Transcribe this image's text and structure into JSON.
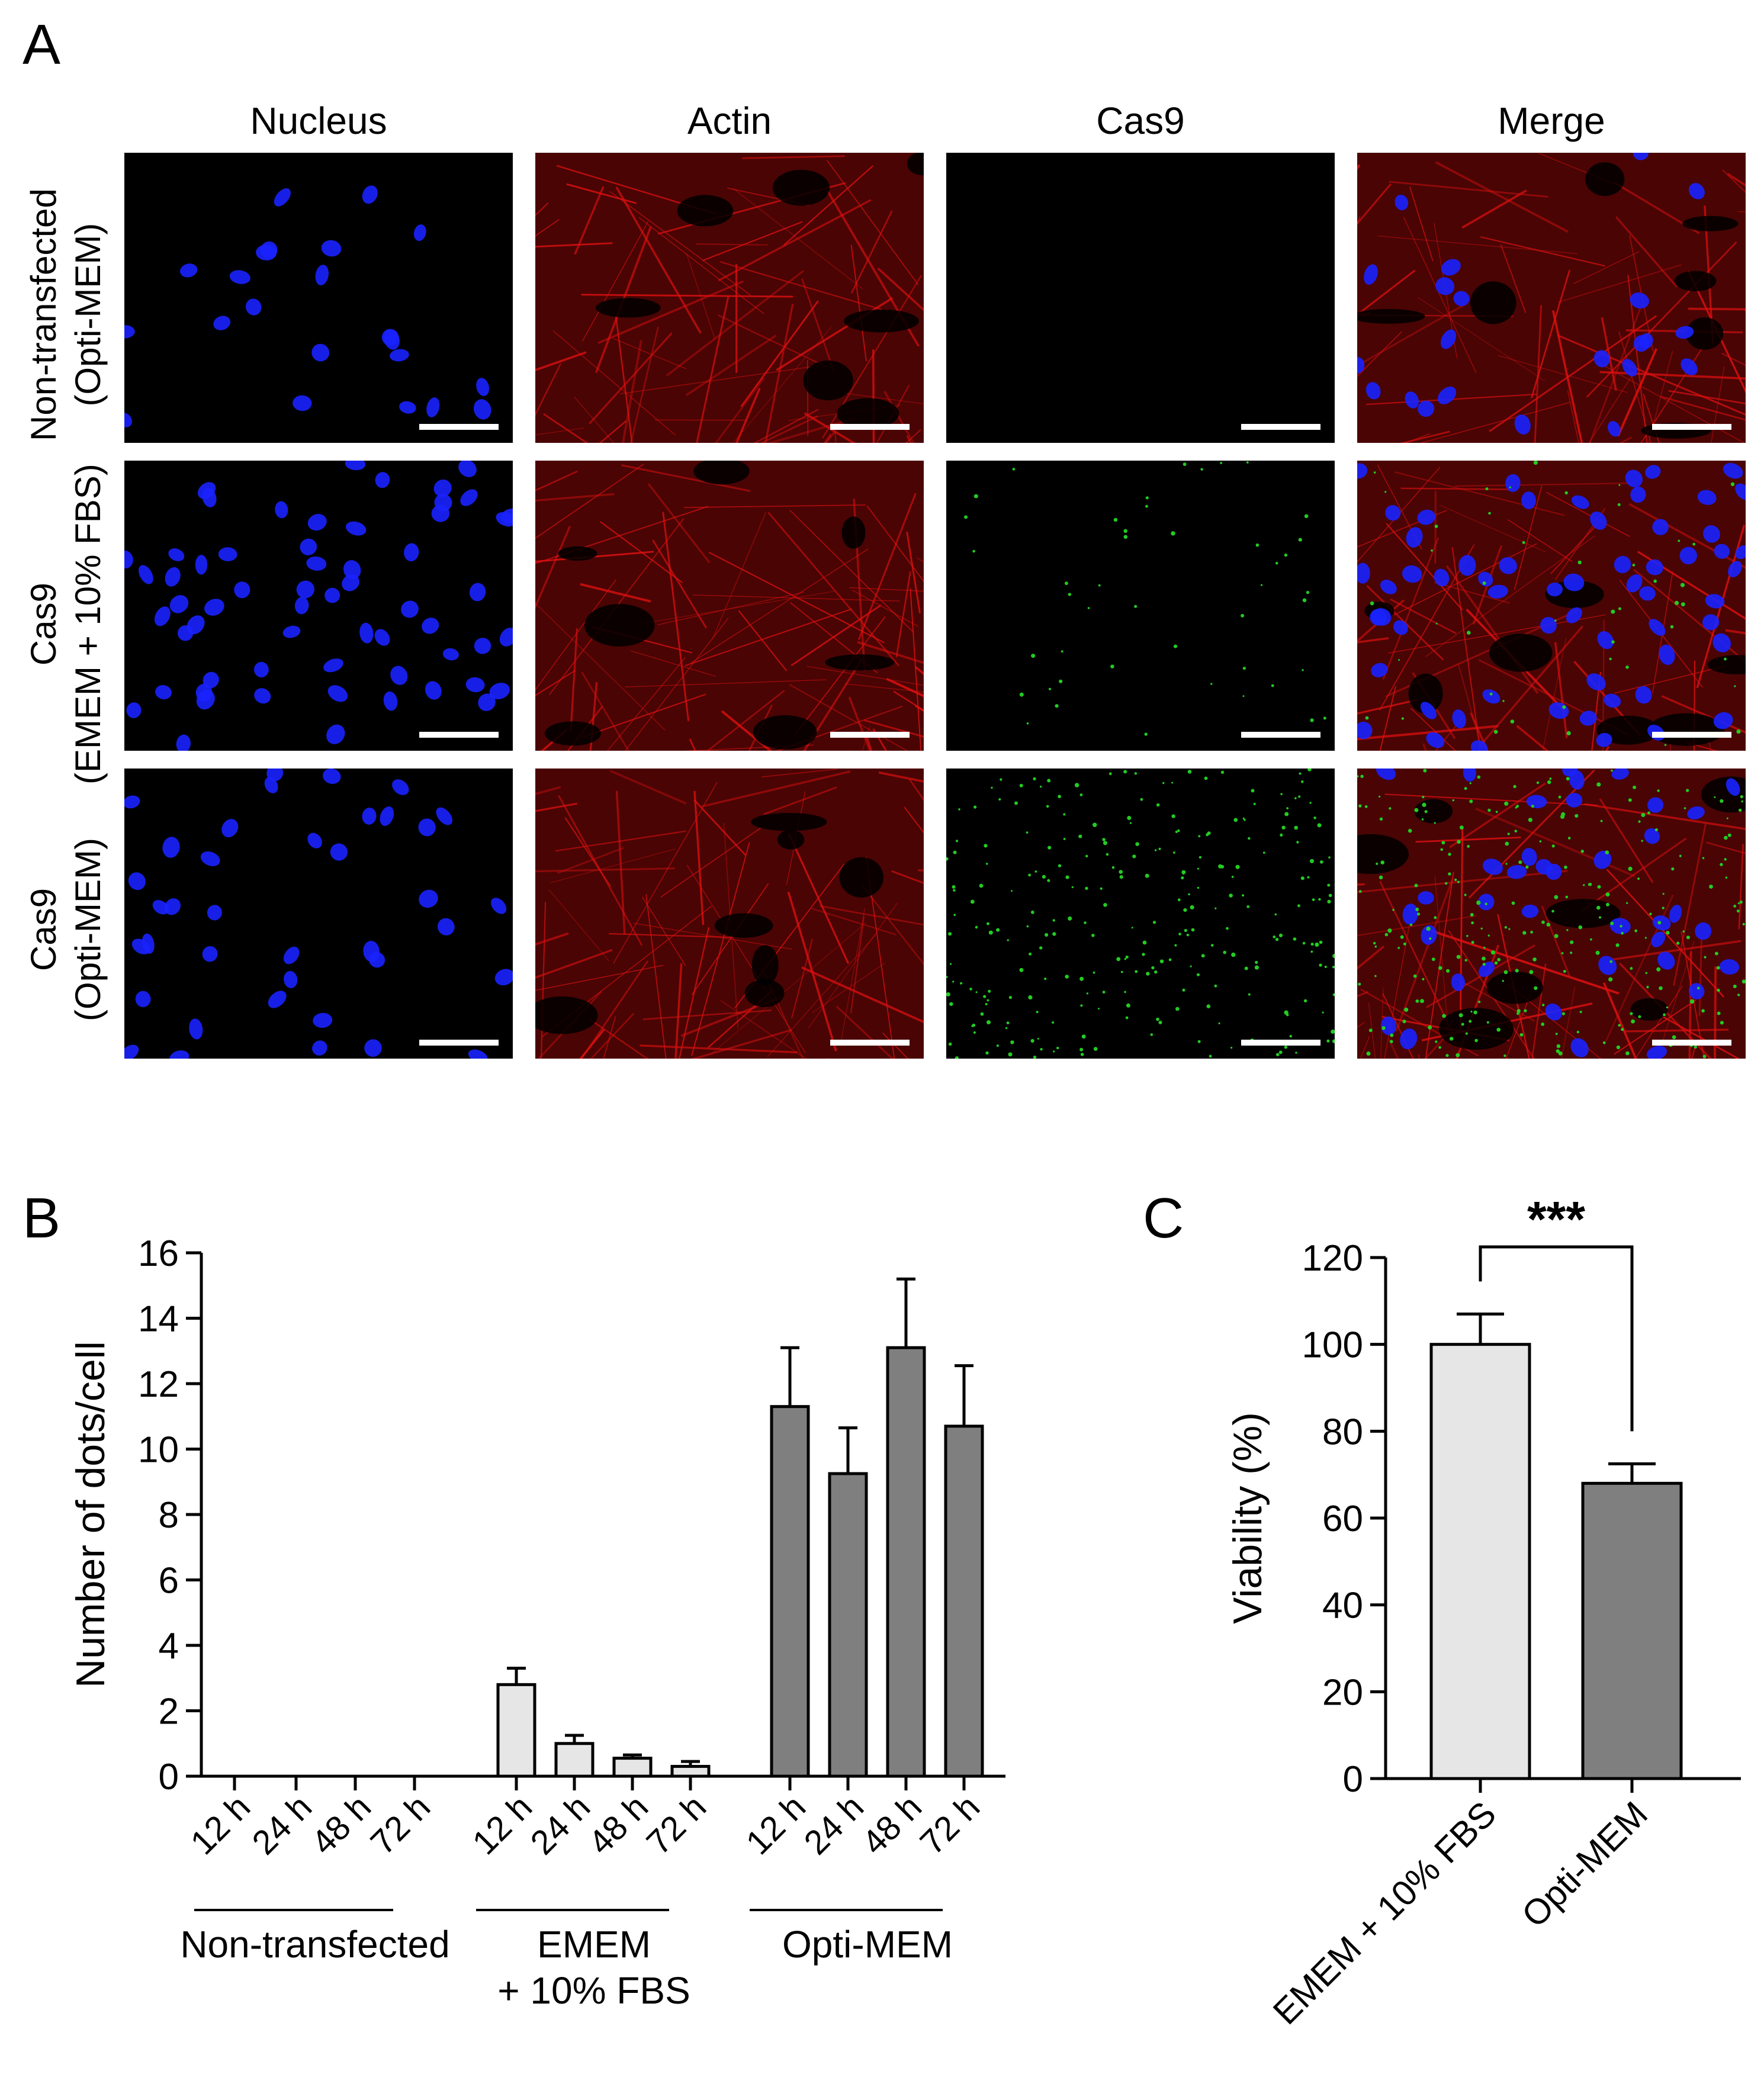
{
  "panel_a": {
    "letter": "A",
    "columns": [
      "Nucleus",
      "Actin",
      "Cas9",
      "Merge"
    ],
    "rows": [
      {
        "line1": "Non-transfected",
        "line2": "(Opti-MEM)",
        "cas9_level": 0
      },
      {
        "line1": "Cas9",
        "line2": "(EMEM + 10% FBS)",
        "cas9_level": 1
      },
      {
        "line1": "Cas9",
        "line2": "(Opti-MEM)",
        "cas9_level": 3
      }
    ],
    "colors": {
      "nucleus": "#1a22ff",
      "actin": "#e01010",
      "cas9": "#22cc22",
      "background": "#000000"
    }
  },
  "panel_b": {
    "letter": "B"
  },
  "panel_c": {
    "letter": "C"
  },
  "chart_data": [
    {
      "panel": "B",
      "type": "bar",
      "ylabel": "Number of dots/cell",
      "ylim": [
        0,
        16
      ],
      "yticks": [
        0,
        2,
        4,
        6,
        8,
        10,
        12,
        14,
        16
      ],
      "categories": [
        "12 h",
        "24 h",
        "48 h",
        "72 h"
      ],
      "groups": [
        {
          "name": "Non-transfected",
          "name_lines": [
            "Non-transfected"
          ],
          "color": "#e6e6e6",
          "values": [
            0,
            0,
            0,
            0
          ],
          "errors": [
            0,
            0,
            0,
            0
          ]
        },
        {
          "name": "EMEM + 10% FBS",
          "name_lines": [
            "EMEM",
            "+ 10% FBS"
          ],
          "color": "#e6e6e6",
          "values": [
            2.8,
            1.0,
            0.55,
            0.3
          ],
          "errors": [
            0.5,
            0.25,
            0.1,
            0.15
          ]
        },
        {
          "name": "Opti-MEM",
          "name_lines": [
            "Opti-MEM"
          ],
          "color": "#7f7f7f",
          "values": [
            11.3,
            9.25,
            13.1,
            10.7
          ],
          "errors": [
            1.8,
            1.4,
            2.1,
            1.85
          ]
        }
      ]
    },
    {
      "panel": "C",
      "type": "bar",
      "ylabel": "Viability (%)",
      "ylim": [
        0,
        120
      ],
      "yticks": [
        0,
        20,
        40,
        60,
        80,
        100,
        120
      ],
      "categories": [
        "EMEM + 10% FBS",
        "Opti-MEM"
      ],
      "values": [
        100,
        68
      ],
      "errors": [
        7,
        4.5
      ],
      "colors": [
        "#e6e6e6",
        "#7f7f7f"
      ],
      "significance": "***"
    }
  ]
}
